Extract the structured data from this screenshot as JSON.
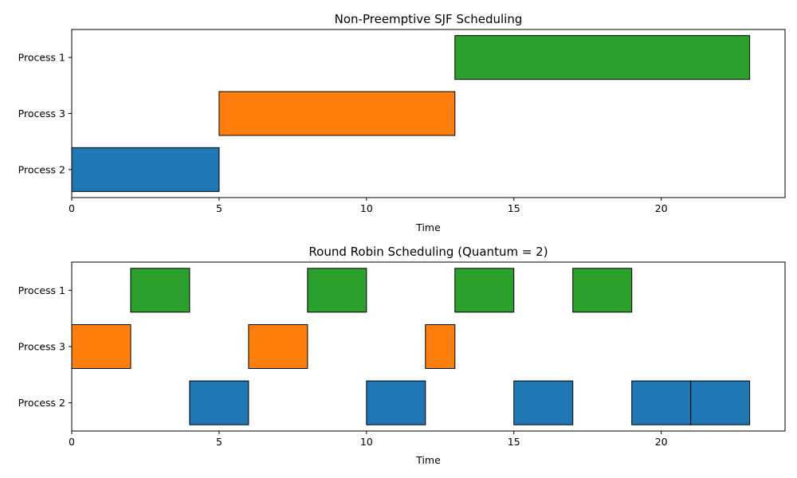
{
  "chart_data": [
    {
      "type": "gantt",
      "title": "Non-Preemptive SJF Scheduling",
      "xlabel": "Time",
      "ylabel": "",
      "xlim": [
        0,
        24.2
      ],
      "xticks": [
        0,
        5,
        10,
        15,
        20
      ],
      "categories": [
        "Process 2",
        "Process 3",
        "Process 1"
      ],
      "grid": false,
      "tasks": [
        {
          "process": "Process 2",
          "start": 0,
          "end": 5,
          "color": "#1f77b4"
        },
        {
          "process": "Process 3",
          "start": 5,
          "end": 13,
          "color": "#ff7f0e"
        },
        {
          "process": "Process 1",
          "start": 13,
          "end": 23,
          "color": "#2ca02c"
        }
      ]
    },
    {
      "type": "gantt",
      "title": "Round Robin Scheduling (Quantum = 2)",
      "xlabel": "Time",
      "ylabel": "",
      "xlim": [
        0,
        24.2
      ],
      "xticks": [
        0,
        5,
        10,
        15,
        20
      ],
      "categories": [
        "Process 2",
        "Process 3",
        "Process 1"
      ],
      "grid": false,
      "tasks": [
        {
          "process": "Process 3",
          "start": 0,
          "end": 2,
          "color": "#ff7f0e"
        },
        {
          "process": "Process 1",
          "start": 2,
          "end": 4,
          "color": "#2ca02c"
        },
        {
          "process": "Process 2",
          "start": 4,
          "end": 6,
          "color": "#1f77b4"
        },
        {
          "process": "Process 3",
          "start": 6,
          "end": 8,
          "color": "#ff7f0e"
        },
        {
          "process": "Process 1",
          "start": 8,
          "end": 10,
          "color": "#2ca02c"
        },
        {
          "process": "Process 2",
          "start": 10,
          "end": 12,
          "color": "#1f77b4"
        },
        {
          "process": "Process 3",
          "start": 12,
          "end": 13,
          "color": "#ff7f0e"
        },
        {
          "process": "Process 1",
          "start": 13,
          "end": 15,
          "color": "#2ca02c"
        },
        {
          "process": "Process 2",
          "start": 15,
          "end": 17,
          "color": "#1f77b4"
        },
        {
          "process": "Process 1",
          "start": 17,
          "end": 19,
          "color": "#2ca02c"
        },
        {
          "process": "Process 2",
          "start": 19,
          "end": 21,
          "color": "#1f77b4"
        },
        {
          "process": "Process 2",
          "start": 21,
          "end": 23,
          "color": "#1f77b4"
        }
      ]
    }
  ]
}
